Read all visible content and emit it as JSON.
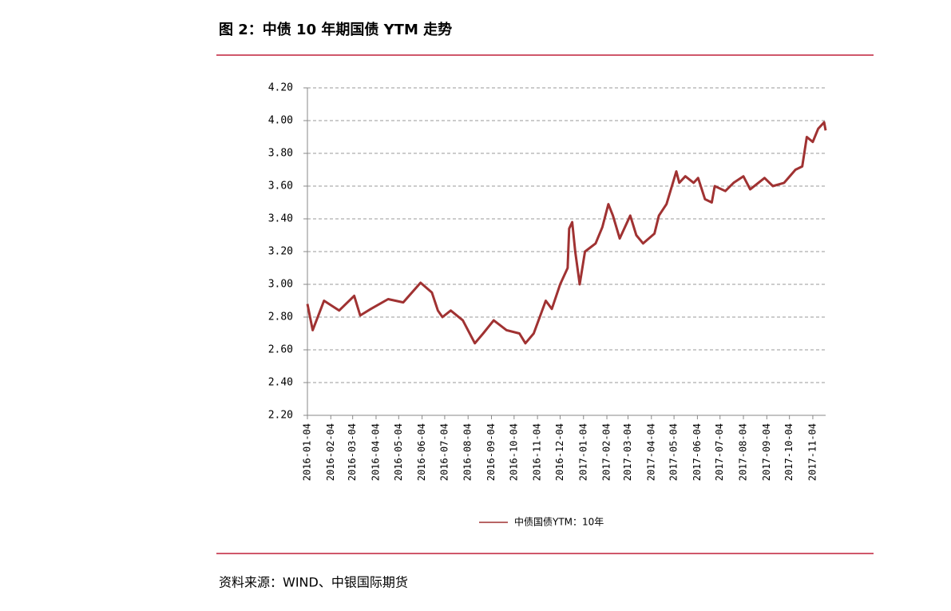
{
  "chart_data": {
    "type": "line",
    "title": "图 2：中债 10 年期国债 YTM 走势",
    "source": "资料来源：WIND、中银国际期货",
    "x": [
      "2016-01-04",
      "2016-01-11",
      "2016-01-26",
      "2016-02-15",
      "2016-03-06",
      "2016-03-14",
      "2016-03-28",
      "2016-04-20",
      "2016-05-10",
      "2016-06-02",
      "2016-06-17",
      "2016-06-25",
      "2016-07-01",
      "2016-07-12",
      "2016-07-28",
      "2016-08-13",
      "2016-08-24",
      "2016-09-07",
      "2016-09-24",
      "2016-10-11",
      "2016-10-19",
      "2016-10-30",
      "2016-11-15",
      "2016-11-23",
      "2016-12-04",
      "2016-12-14",
      "2016-12-16",
      "2016-12-20",
      "2016-12-24",
      "2016-12-30",
      "2017-01-06",
      "2017-01-20",
      "2017-01-29",
      "2017-02-06",
      "2017-02-12",
      "2017-02-21",
      "2017-03-07",
      "2017-03-15",
      "2017-03-24",
      "2017-04-08",
      "2017-04-14",
      "2017-04-24",
      "2017-05-07",
      "2017-05-11",
      "2017-05-19",
      "2017-05-30",
      "2017-06-05",
      "2017-06-14",
      "2017-06-23",
      "2017-06-27",
      "2017-07-11",
      "2017-07-22",
      "2017-08-04",
      "2017-08-13",
      "2017-09-01",
      "2017-09-12",
      "2017-09-27",
      "2017-10-12",
      "2017-10-21",
      "2017-10-27",
      "2017-11-04",
      "2017-11-11",
      "2017-11-19",
      "2017-11-21"
    ],
    "series": [
      {
        "name": "中债国债YTM：10年",
        "color": "#a03232",
        "values": [
          2.88,
          2.72,
          2.9,
          2.84,
          2.93,
          2.81,
          2.85,
          2.91,
          2.89,
          3.01,
          2.95,
          2.84,
          2.8,
          2.84,
          2.78,
          2.64,
          2.7,
          2.78,
          2.72,
          2.7,
          2.64,
          2.7,
          2.9,
          2.85,
          3.0,
          3.1,
          3.34,
          3.38,
          3.2,
          3.0,
          3.2,
          3.25,
          3.35,
          3.49,
          3.42,
          3.28,
          3.42,
          3.3,
          3.25,
          3.31,
          3.42,
          3.49,
          3.69,
          3.62,
          3.66,
          3.62,
          3.65,
          3.52,
          3.5,
          3.6,
          3.57,
          3.62,
          3.66,
          3.58,
          3.65,
          3.6,
          3.62,
          3.7,
          3.72,
          3.9,
          3.87,
          3.95,
          3.99,
          3.94
        ]
      }
    ],
    "xlim": [
      "2016-01-04",
      "2017-11-21"
    ],
    "xticks": [
      "2016-01-04",
      "2016-02-04",
      "2016-03-04",
      "2016-04-04",
      "2016-05-04",
      "2016-06-04",
      "2016-07-04",
      "2016-08-04",
      "2016-09-04",
      "2016-10-04",
      "2016-11-04",
      "2016-12-04",
      "2017-01-04",
      "2017-02-04",
      "2017-03-04",
      "2017-04-04",
      "2017-05-04",
      "2017-06-04",
      "2017-07-04",
      "2017-08-04",
      "2017-09-04",
      "2017-10-04",
      "2017-11-04"
    ],
    "ylim": [
      2.2,
      4.2
    ],
    "yticks": [
      {
        "value": 2.2,
        "label": "2.20"
      },
      {
        "value": 2.4,
        "label": "2.40"
      },
      {
        "value": 2.6,
        "label": "2.60"
      },
      {
        "value": 2.8,
        "label": "2.80"
      },
      {
        "value": 3.0,
        "label": "3.00"
      },
      {
        "value": 3.2,
        "label": "3.20"
      },
      {
        "value": 3.4,
        "label": "3.40"
      },
      {
        "value": 3.6,
        "label": "3.60"
      },
      {
        "value": 3.8,
        "label": "3.80"
      },
      {
        "value": 4.0,
        "label": "4.00"
      },
      {
        "value": 4.2,
        "label": "4.20"
      }
    ],
    "grid": true,
    "legend": "bottom"
  }
}
